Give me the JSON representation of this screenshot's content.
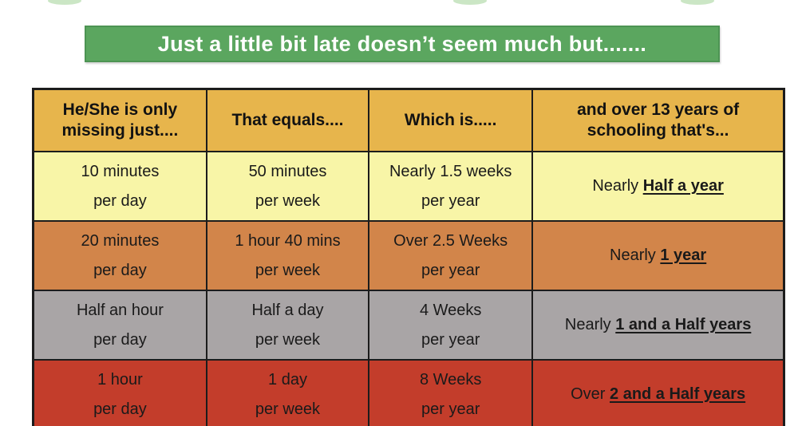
{
  "banner": {
    "text": "Just a little bit late doesn’t seem much but.......",
    "bg": "#5ba65f",
    "border_color": "#4d9453",
    "text_color": "#ffffff"
  },
  "table": {
    "border_color": "#1c1c1c",
    "header": {
      "bg": "#e7b54c",
      "text_color": "#121212",
      "labels": [
        "He/She is only missing just....",
        "That equals....",
        "Which is.....",
        "and over 13 years of schooling that's..."
      ]
    },
    "rows": [
      {
        "bg": "#f8f5a7",
        "text_color": "#1a1a1a",
        "cells": [
          [
            "10 minutes",
            "per day"
          ],
          [
            "50 minutes",
            "per week"
          ],
          [
            "Nearly 1.5 weeks",
            "per year"
          ]
        ],
        "summary": {
          "prefix": "Nearly ",
          "emphasis": "Half a year"
        }
      },
      {
        "bg": "#d2854a",
        "text_color": "#1a1a1a",
        "cells": [
          [
            "20 minutes",
            "per day"
          ],
          [
            "1 hour 40 mins",
            "per week"
          ],
          [
            "Over 2.5 Weeks",
            "per year"
          ]
        ],
        "summary": {
          "prefix": "Nearly ",
          "emphasis": "1 year"
        }
      },
      {
        "bg": "#a9a5a6",
        "text_color": "#1a1a1a",
        "cells": [
          [
            "Half an hour",
            "per day"
          ],
          [
            "Half a day",
            "per week"
          ],
          [
            "4 Weeks",
            "per year"
          ]
        ],
        "summary": {
          "prefix": "Nearly ",
          "emphasis": "1 and a Half years"
        }
      },
      {
        "bg": "#c33d2b",
        "text_color": "#1a1a1a",
        "cells": [
          [
            "1 hour",
            "per day"
          ],
          [
            "1 day",
            "per week"
          ],
          [
            "8 Weeks",
            "per year"
          ]
        ],
        "summary": {
          "prefix": "Over ",
          "emphasis": "2 and a Half years"
        }
      }
    ],
    "column_widths_pct": [
      23.1,
      21.6,
      21.8,
      33.5
    ]
  },
  "decorations": {
    "fragment_color": "#b9ddb2"
  }
}
